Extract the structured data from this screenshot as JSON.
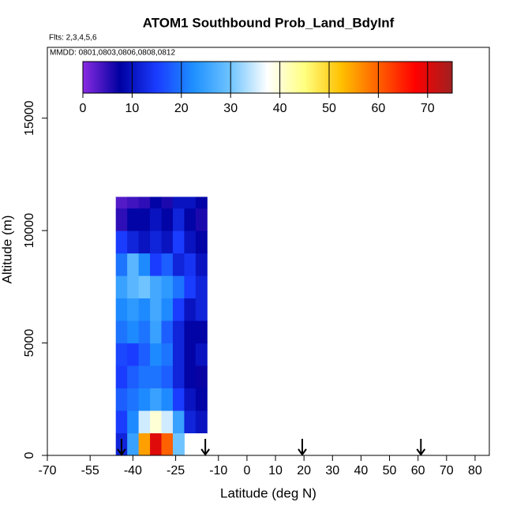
{
  "chart_data": {
    "type": "heatmap",
    "title": "ATOM1 Southbound Prob_Land_BdyInf",
    "subtitle": "Flts: 2,3,4,5,6",
    "annotation": "MMDD: 0801,0803,0806,0808,0812",
    "x_label": "Latitude (deg N)",
    "y_label": "Altitude (m)",
    "xlim": [
      -70,
      85
    ],
    "xticks": [
      -70,
      -55,
      -40,
      -25,
      -10,
      0,
      10,
      20,
      30,
      40,
      50,
      60,
      70,
      80
    ],
    "ylim": [
      0,
      18150
    ],
    "yticks": [
      0,
      5000,
      10000,
      15000
    ],
    "xbins": [
      -46,
      -42,
      -38,
      -34,
      -30,
      -26,
      -22,
      -18,
      -14
    ],
    "ybins": [
      0,
      1000,
      2000,
      3000,
      4000,
      5000,
      6000,
      7000,
      8000,
      9000,
      10000,
      11000,
      11500
    ],
    "z": [
      [
        12,
        25,
        55,
        70,
        60,
        30,
        null,
        null
      ],
      [
        15,
        22,
        35,
        40,
        35,
        25,
        12,
        10
      ],
      [
        18,
        20,
        22,
        25,
        22,
        15,
        10,
        8
      ],
      [
        15,
        18,
        20,
        20,
        18,
        12,
        8,
        7
      ],
      [
        16,
        15,
        18,
        22,
        20,
        12,
        8,
        10
      ],
      [
        20,
        22,
        20,
        25,
        18,
        12,
        8,
        8
      ],
      [
        22,
        24,
        22,
        26,
        22,
        15,
        10,
        12
      ],
      [
        25,
        28,
        30,
        26,
        24,
        20,
        15,
        12
      ],
      [
        20,
        28,
        22,
        15,
        18,
        12,
        14,
        10
      ],
      [
        15,
        12,
        10,
        12,
        10,
        15,
        10,
        8
      ],
      [
        5,
        8,
        8,
        10,
        8,
        12,
        8,
        6
      ],
      [
        3,
        4,
        5,
        8,
        6,
        10,
        10,
        8
      ]
    ],
    "colorbar_lim": [
      0,
      75
    ],
    "colorbar_ticks": [
      0,
      10,
      20,
      30,
      40,
      50,
      60,
      70
    ],
    "colormap": [
      "#8a2be2",
      "#0000a0",
      "#1a3cff",
      "#1e90ff",
      "#6fc4ff",
      "#ffffff",
      "#ffff80",
      "#ffc000",
      "#ff6000",
      "#ff0000",
      "#a02020"
    ],
    "arrows_x": [
      -44,
      -14.6,
      19.4,
      61
    ]
  }
}
